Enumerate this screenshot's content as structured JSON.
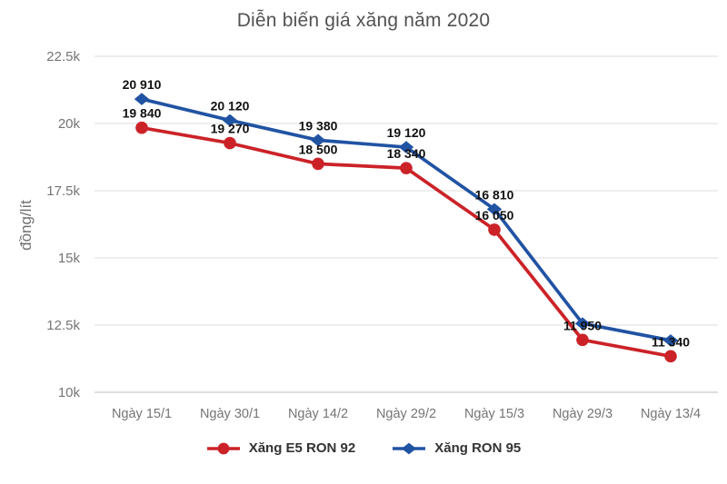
{
  "chart_data": {
    "type": "line",
    "title": "Diễn biến giá xăng năm 2020",
    "xlabel": "",
    "ylabel": "đồng/lít",
    "categories": [
      "Ngày 15/1",
      "Ngày 30/1",
      "Ngày 14/2",
      "Ngày 29/2",
      "Ngày 15/3",
      "Ngày 29/3",
      "Ngày 13/4"
    ],
    "ylim": [
      10000,
      22500
    ],
    "y_ticks": [
      {
        "value": 10000,
        "label": "10k"
      },
      {
        "value": 12500,
        "label": "12.5k"
      },
      {
        "value": 15000,
        "label": "15k"
      },
      {
        "value": 17500,
        "label": "17.5k"
      },
      {
        "value": 20000,
        "label": "20k"
      },
      {
        "value": 22500,
        "label": "22.5k"
      }
    ],
    "grid": "horizontal",
    "legend_position": "bottom",
    "series": [
      {
        "name": "Xăng E5 RON 92",
        "color": "#cb2228",
        "marker": "circle",
        "values": [
          19840,
          19270,
          18500,
          18340,
          16050,
          11950,
          11340
        ],
        "point_labels": [
          "19 840",
          "19 270",
          "18 500",
          "18 340",
          "16 050",
          "11 950",
          "11 340"
        ]
      },
      {
        "name": "Xăng RON 95",
        "color": "#2153a3",
        "marker": "diamond",
        "values": [
          20910,
          20120,
          19380,
          19120,
          16810,
          12560,
          11930
        ],
        "point_labels": [
          "20 910",
          "20 120",
          "19 380",
          "19 120",
          "16 810",
          "",
          ""
        ]
      }
    ],
    "style": {
      "title_color": "#525252",
      "tick_color": "#757575",
      "grid_color": "#e4e4e4",
      "axis_line_color": "#c9c9c9",
      "data_label_color": "#111111",
      "legend_text_color": "#333333"
    }
  }
}
